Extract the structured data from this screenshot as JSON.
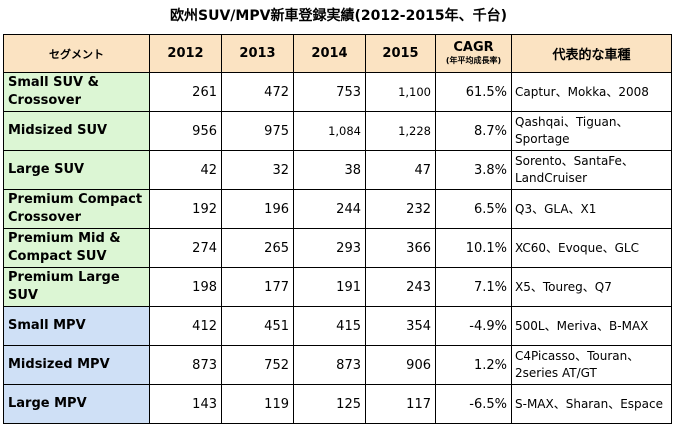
{
  "title": "欧州SUV/MPV新車登録実績(2012-2015年、千台)",
  "headers": {
    "segment": "セグメント",
    "y2012": "2012",
    "y2013": "2013",
    "y2014": "2014",
    "y2015": "2015",
    "cagr": "CAGR",
    "cagr_sub": "(年平均成長率)",
    "models": "代表的な車種"
  },
  "colors": {
    "header_bg": "#fbe3c2",
    "suv_bg": "#dcf6d4",
    "mpv_bg": "#cfe0f6"
  },
  "rows": [
    {
      "group": "suv",
      "segment": "Small SUV & Crossover",
      "y2012": "261",
      "y2013": "472",
      "y2014": "753",
      "y2015": "1,100",
      "cagr": "61.5%",
      "models": "Captur、Mokka、2008"
    },
    {
      "group": "suv",
      "segment": "Midsized SUV",
      "y2012": "956",
      "y2013": "975",
      "y2014": "1,084",
      "y2015": "1,228",
      "cagr": "8.7%",
      "models": "Qashqai、Tiguan、Sportage"
    },
    {
      "group": "suv",
      "segment": "Large SUV",
      "y2012": "42",
      "y2013": "32",
      "y2014": "38",
      "y2015": "47",
      "cagr": "3.8%",
      "models": "Sorento、SantaFe、LandCruiser"
    },
    {
      "group": "suv",
      "segment": "Premium Compact Crossover",
      "y2012": "192",
      "y2013": "196",
      "y2014": "244",
      "y2015": "232",
      "cagr": "6.5%",
      "models": "Q3、GLA、X1"
    },
    {
      "group": "suv",
      "segment": "Premium Mid & Compact SUV",
      "y2012": "274",
      "y2013": "265",
      "y2014": "293",
      "y2015": "366",
      "cagr": "10.1%",
      "models": "XC60、Evoque、GLC"
    },
    {
      "group": "suv",
      "segment": "Premium Large SUV",
      "y2012": "198",
      "y2013": "177",
      "y2014": "191",
      "y2015": "243",
      "cagr": "7.1%",
      "models": "X5、Toureg、Q7"
    },
    {
      "group": "mpv",
      "segment": "Small MPV",
      "y2012": "412",
      "y2013": "451",
      "y2014": "415",
      "y2015": "354",
      "cagr": "-4.9%",
      "models": "500L、Meriva、B-MAX"
    },
    {
      "group": "mpv",
      "segment": "Midsized MPV",
      "y2012": "873",
      "y2013": "752",
      "y2014": "873",
      "y2015": "906",
      "cagr": "1.2%",
      "models": "C4Picasso、Touran、2series AT/GT"
    },
    {
      "group": "mpv",
      "segment": "Large MPV",
      "y2012": "143",
      "y2013": "119",
      "y2014": "125",
      "y2015": "117",
      "cagr": "-6.5%",
      "models": "S-MAX、Sharan、Espace"
    }
  ]
}
